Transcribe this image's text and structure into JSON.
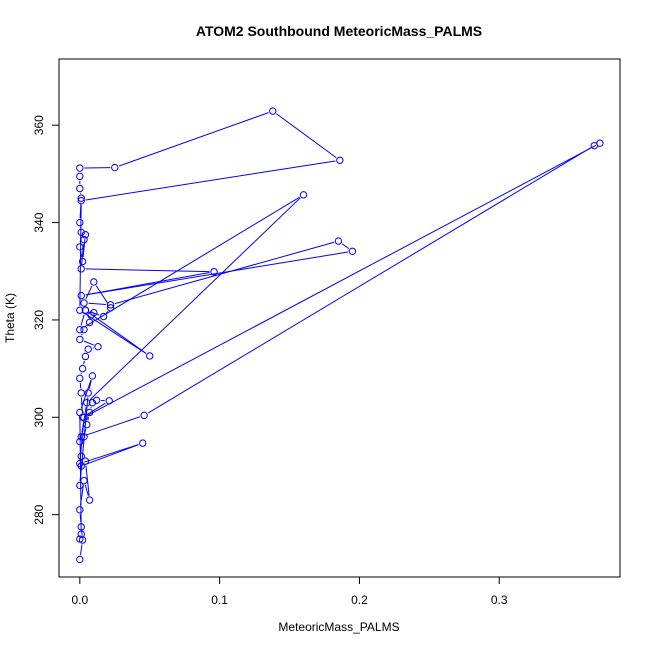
{
  "chart_data": {
    "type": "scatter",
    "title": "ATOM2 Southbound MeteoricMass_PALMS",
    "xlabel": "MeteoricMass_PALMS",
    "ylabel": "Theta (K)",
    "xlim": [
      -0.0149,
      0.3864
    ],
    "ylim": [
      267.2,
      373.6
    ],
    "x_ticks": [
      0.0,
      0.1,
      0.2,
      0.3
    ],
    "x_tick_labels": [
      "0.0",
      "0.1",
      "0.2",
      "0.3"
    ],
    "y_ticks": [
      280,
      300,
      320,
      340,
      360
    ],
    "y_tick_labels": [
      "280",
      "300",
      "320",
      "340",
      "360"
    ],
    "grid": false,
    "legend": "none",
    "markers": "open circles connected by lines",
    "series": [
      {
        "color": "#0000ff",
        "points": [
          [
            0.0,
            270.8
          ],
          [
            0.002,
            274.8
          ],
          [
            0.001,
            277.5
          ],
          [
            0.0,
            281.0
          ],
          [
            0.003,
            287.0
          ],
          [
            0.007,
            283.0
          ],
          [
            0.004,
            291.0
          ],
          [
            0.001,
            292.0
          ],
          [
            0.0,
            295.0
          ],
          [
            0.003,
            296.0
          ],
          [
            0.005,
            298.5
          ],
          [
            0.007,
            301.0
          ],
          [
            0.009,
            303.0
          ],
          [
            0.012,
            303.5
          ],
          [
            0.021,
            303.4
          ],
          [
            0.002,
            300.0
          ],
          [
            0.001,
            305.0
          ],
          [
            0.0,
            308.0
          ],
          [
            0.002,
            310.0
          ],
          [
            0.004,
            312.5
          ],
          [
            0.006,
            314.0
          ],
          [
            0.013,
            314.5
          ],
          [
            0.0,
            316.0
          ],
          [
            0.003,
            318.0
          ],
          [
            0.007,
            319.5
          ],
          [
            0.008,
            321.0
          ],
          [
            0.01,
            321.5
          ],
          [
            0.004,
            322.0
          ],
          [
            0.017,
            320.7
          ],
          [
            0.022,
            322.5
          ],
          [
            0.01,
            327.8
          ],
          [
            0.003,
            323.5
          ],
          [
            0.022,
            323.1
          ],
          [
            0.185,
            336.2
          ],
          [
            0.195,
            334.1
          ],
          [
            0.001,
            325.0
          ],
          [
            0.096,
            329.9
          ],
          [
            0.001,
            330.5
          ],
          [
            0.003,
            336.5
          ],
          [
            0.004,
            337.5
          ],
          [
            0.002,
            332.0
          ],
          [
            0.0,
            335.0
          ],
          [
            0.001,
            338.0
          ],
          [
            0.0,
            340.0
          ],
          [
            0.001,
            345.0
          ],
          [
            0.0,
            347.0
          ],
          [
            0.0,
            349.5
          ],
          [
            0.0,
            351.2
          ],
          [
            0.025,
            351.3
          ],
          [
            0.138,
            362.9
          ],
          [
            0.186,
            352.8
          ],
          [
            0.001,
            344.5
          ],
          [
            0.0,
            322.0
          ],
          [
            0.05,
            312.6
          ],
          [
            0.004,
            322.0
          ],
          [
            0.0,
            318.0
          ],
          [
            0.16,
            345.7
          ],
          [
            0.005,
            303.0
          ],
          [
            0.001,
            296.0
          ],
          [
            0.046,
            300.4
          ],
          [
            0.368,
            355.8
          ],
          [
            0.372,
            356.3
          ],
          [
            0.003,
            300.0
          ],
          [
            0.0,
            290.5
          ],
          [
            0.045,
            294.7
          ],
          [
            0.001,
            290.0
          ],
          [
            0.0,
            286.0
          ],
          [
            0.006,
            305.0
          ],
          [
            0.009,
            308.5
          ],
          [
            0.0,
            301.0
          ],
          [
            0.001,
            276.0
          ],
          [
            0.0,
            275.0
          ]
        ]
      }
    ]
  }
}
